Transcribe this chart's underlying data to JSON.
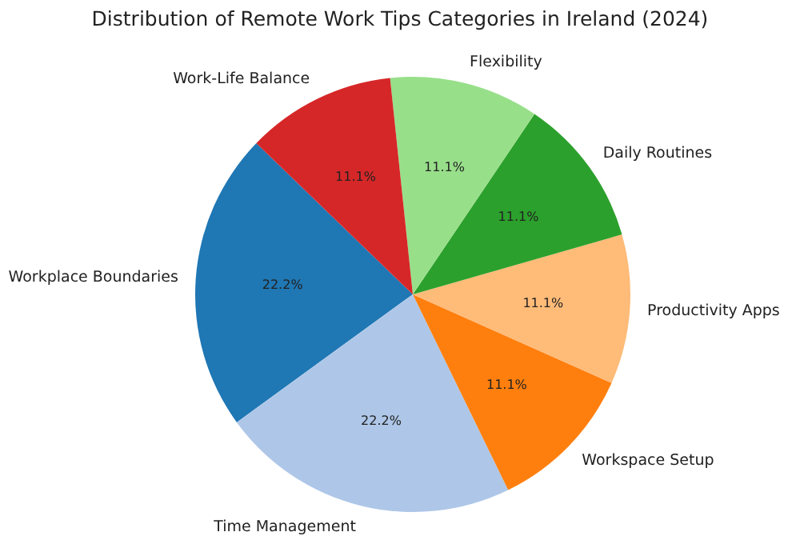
{
  "chart_data": {
    "type": "pie",
    "title": "Distribution of Remote Work Tips Categories in Ireland (2024)",
    "categories": [
      "Workplace Boundaries",
      "Time Management",
      "Workspace Setup",
      "Productivity Apps",
      "Daily Routines",
      "Flexibility",
      "Work-Life Balance"
    ],
    "values": [
      22.2,
      22.2,
      11.1,
      11.1,
      11.1,
      11.1,
      11.1
    ],
    "value_labels": [
      "22.2%",
      "22.2%",
      "11.1%",
      "11.1%",
      "11.1%",
      "11.1%",
      "11.1%"
    ],
    "colors": [
      "#1f77b4",
      "#aec7e8",
      "#ff7f0e",
      "#ffbb78",
      "#2ca02c",
      "#98df8a",
      "#d62728"
    ]
  }
}
